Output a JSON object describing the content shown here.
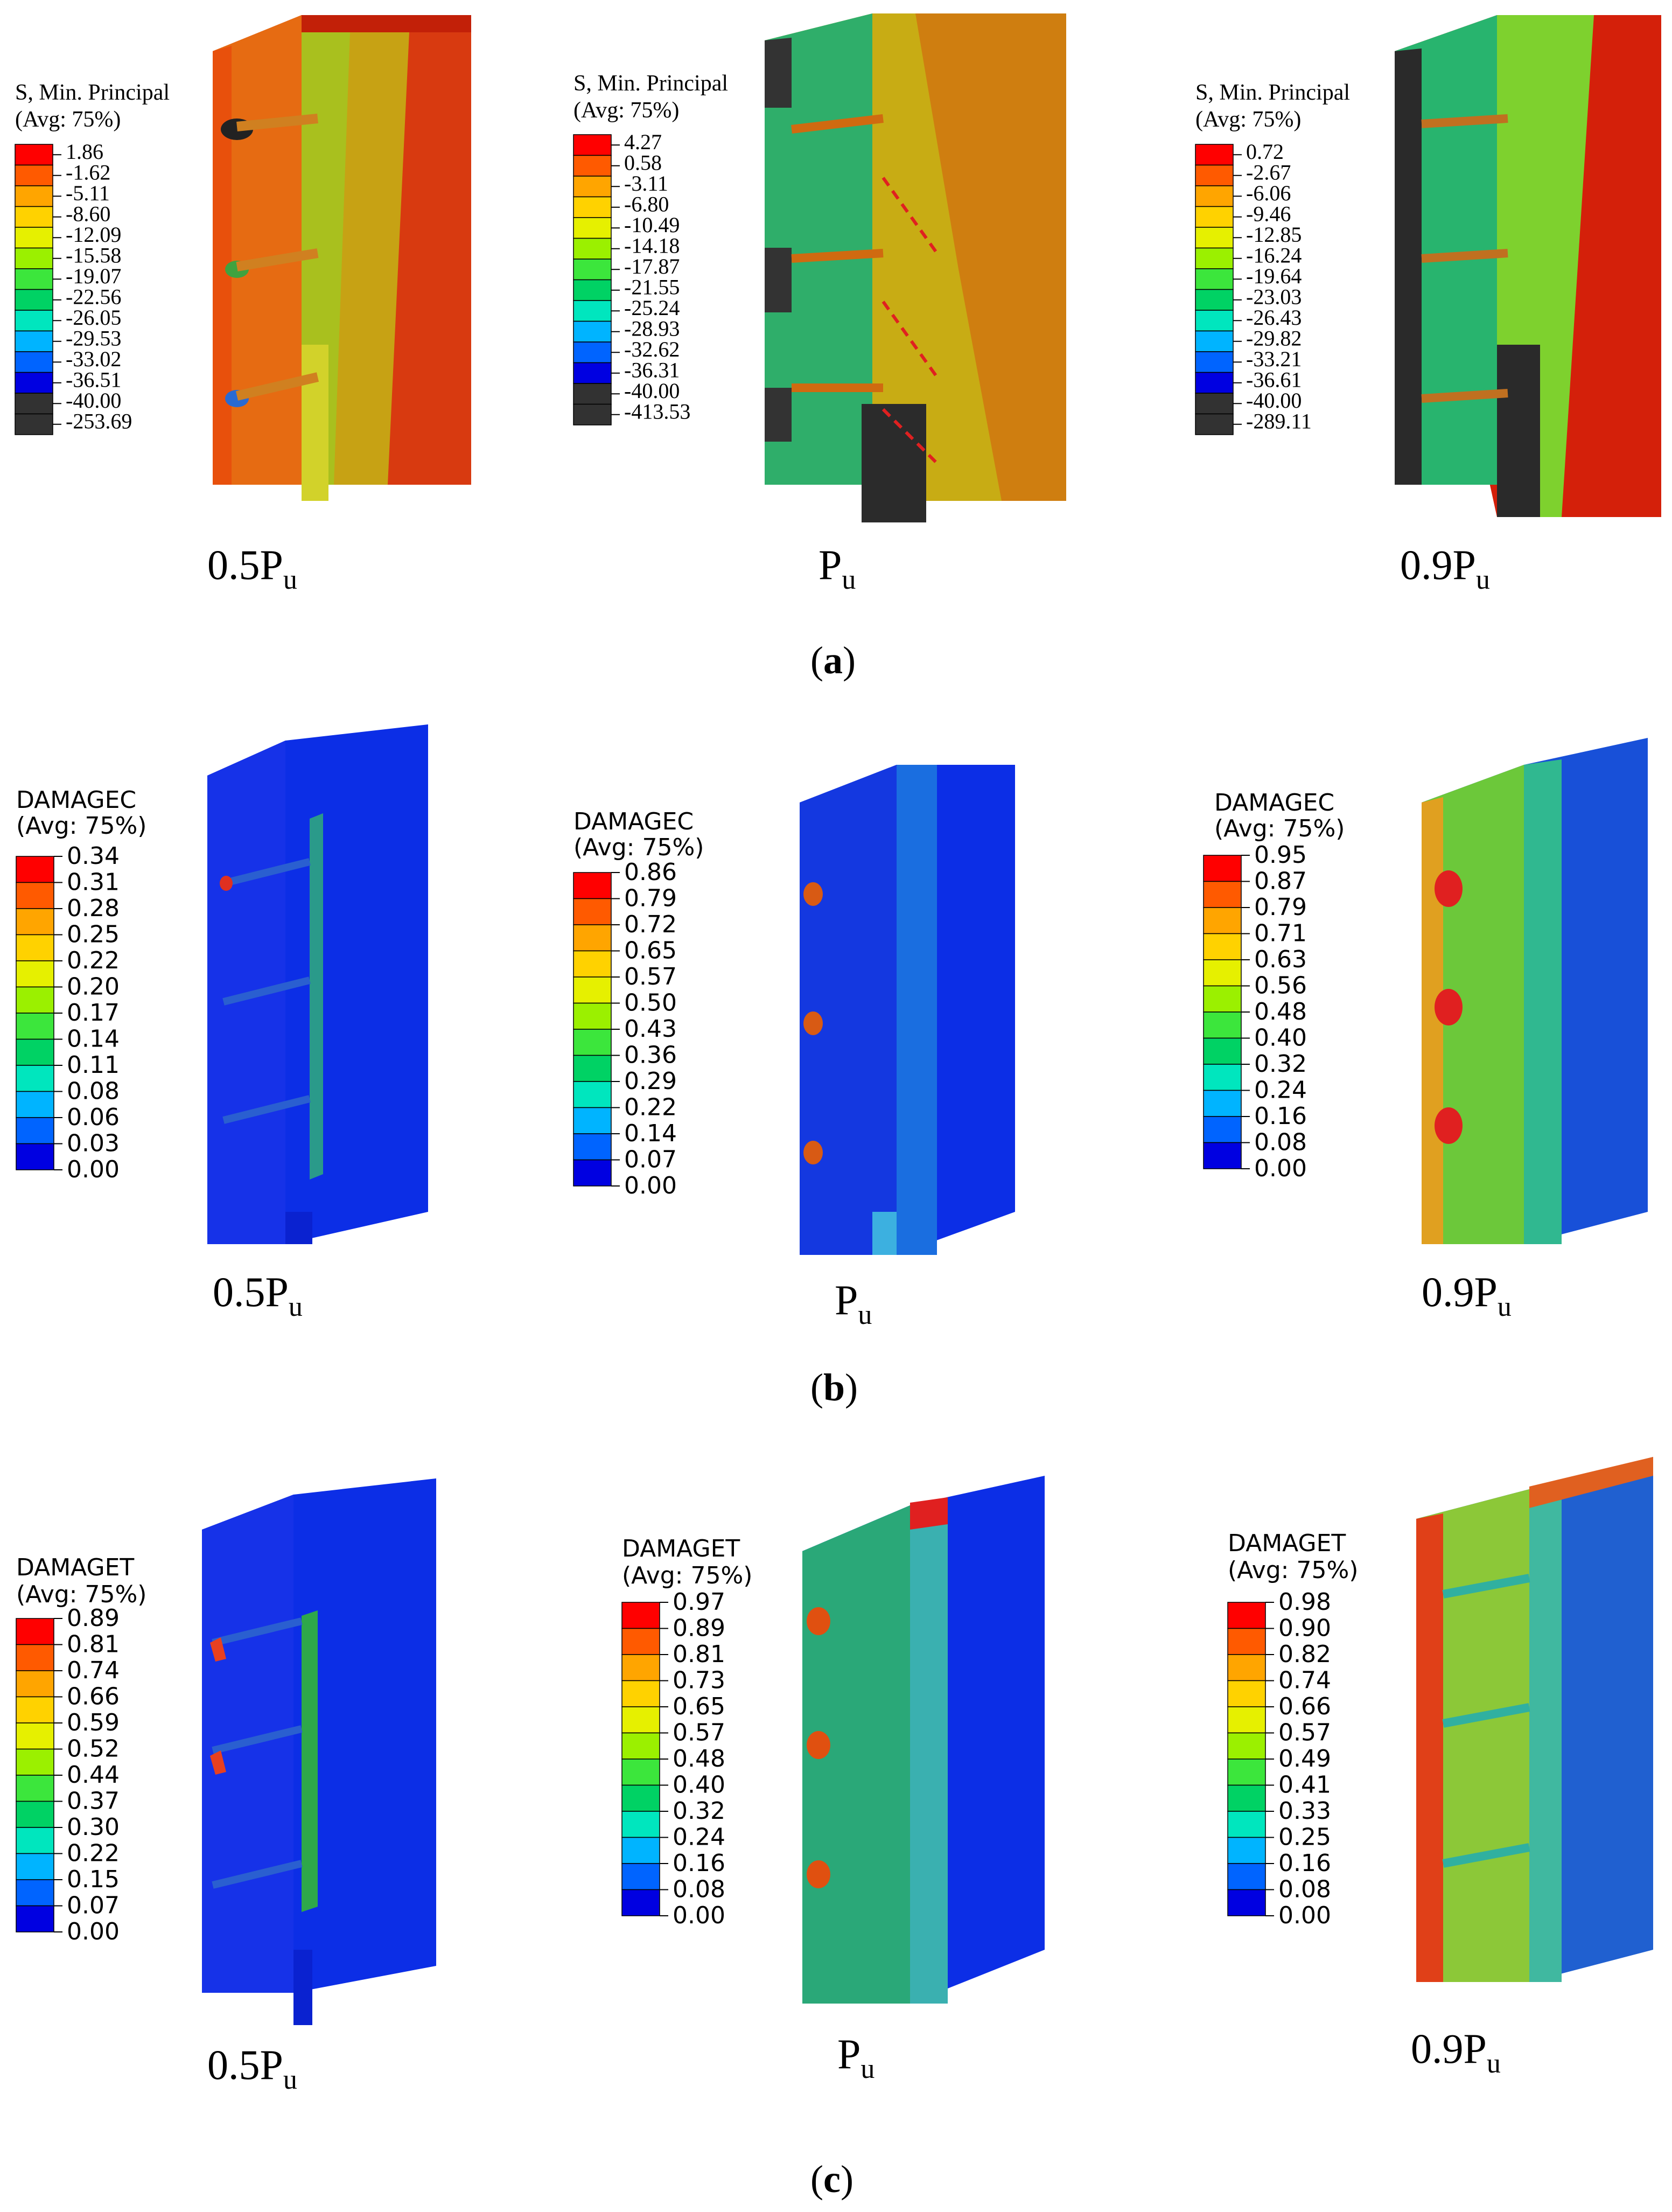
{
  "palette": [
    "#ff0000",
    "#ff5a00",
    "#ffa500",
    "#ffd200",
    "#e6f000",
    "#9bf000",
    "#3ce63c",
    "#00d264",
    "#00e6be",
    "#00b4ff",
    "#0064ff",
    "#0000e1",
    "#323232"
  ],
  "palette_damage": [
    "#ff0000",
    "#ff5a00",
    "#ffa500",
    "#ffd200",
    "#e6f000",
    "#9bf000",
    "#3ce63c",
    "#00d264",
    "#00e6be",
    "#00b4ff",
    "#0064ff",
    "#0000e1"
  ],
  "panels": {
    "a": {
      "label_open": "(",
      "label_letter": "a",
      "label_close": ")",
      "items": [
        {
          "title1": "S, Min. Principal",
          "title2": "(Avg: 75%)",
          "values": [
            "1.86",
            "-1.62",
            "-5.11",
            "-8.60",
            "-12.09",
            "-15.58",
            "-19.07",
            "-22.56",
            "-26.05",
            "-29.53",
            "-33.02",
            "-36.51",
            "-40.00",
            "-253.69"
          ],
          "load": "0.5P",
          "sub": "u"
        },
        {
          "title1": "S, Min. Principal",
          "title2": "(Avg: 75%)",
          "values": [
            "4.27",
            "0.58",
            "-3.11",
            "-6.80",
            "-10.49",
            "-14.18",
            "-17.87",
            "-21.55",
            "-25.24",
            "-28.93",
            "-32.62",
            "-36.31",
            "-40.00",
            "-413.53"
          ],
          "load": "P",
          "sub": "u"
        },
        {
          "title1": "S, Min. Principal",
          "title2": "(Avg: 75%)",
          "values": [
            "0.72",
            "-2.67",
            "-6.06",
            "-9.46",
            "-12.85",
            "-16.24",
            "-19.64",
            "-23.03",
            "-26.43",
            "-29.82",
            "-33.21",
            "-36.61",
            "-40.00",
            "-289.11"
          ],
          "load": "0.9P",
          "sub": "u"
        }
      ]
    },
    "b": {
      "label_open": "(",
      "label_letter": "b",
      "label_close": ")",
      "items": [
        {
          "title1": "DAMAGEC",
          "title2": "(Avg: 75%)",
          "values": [
            "0.34",
            "0.31",
            "0.28",
            "0.25",
            "0.22",
            "0.20",
            "0.17",
            "0.14",
            "0.11",
            "0.08",
            "0.06",
            "0.03",
            "0.00"
          ],
          "load": "0.5P",
          "sub": "u"
        },
        {
          "title1": "DAMAGEC",
          "title2": "(Avg: 75%)",
          "values": [
            "0.86",
            "0.79",
            "0.72",
            "0.65",
            "0.57",
            "0.50",
            "0.43",
            "0.36",
            "0.29",
            "0.22",
            "0.14",
            "0.07",
            "0.00"
          ],
          "load": "P",
          "sub": "u"
        },
        {
          "title1": "DAMAGEC",
          "title2": "(Avg: 75%)",
          "values": [
            "0.95",
            "0.87",
            "0.79",
            "0.71",
            "0.63",
            "0.56",
            "0.48",
            "0.40",
            "0.32",
            "0.24",
            "0.16",
            "0.08",
            "0.00"
          ],
          "load": "0.9P",
          "sub": "u"
        }
      ]
    },
    "c": {
      "label_open": "(",
      "label_letter": "c",
      "label_close": ")",
      "items": [
        {
          "title1": "DAMAGET",
          "title2": "(Avg: 75%)",
          "values": [
            "0.89",
            "0.81",
            "0.74",
            "0.66",
            "0.59",
            "0.52",
            "0.44",
            "0.37",
            "0.30",
            "0.22",
            "0.15",
            "0.07",
            "0.00"
          ],
          "load": "0.5P",
          "sub": "u"
        },
        {
          "title1": "DAMAGET",
          "title2": "(Avg: 75%)",
          "values": [
            "0.97",
            "0.89",
            "0.81",
            "0.73",
            "0.65",
            "0.57",
            "0.48",
            "0.40",
            "0.32",
            "0.24",
            "0.16",
            "0.08",
            "0.00"
          ],
          "load": "P",
          "sub": "u"
        },
        {
          "title1": "DAMAGET",
          "title2": "(Avg: 75%)",
          "values": [
            "0.98",
            "0.90",
            "0.82",
            "0.74",
            "0.66",
            "0.57",
            "0.49",
            "0.41",
            "0.33",
            "0.25",
            "0.16",
            "0.08",
            "0.00"
          ],
          "load": "0.9P",
          "sub": "u"
        }
      ]
    }
  }
}
